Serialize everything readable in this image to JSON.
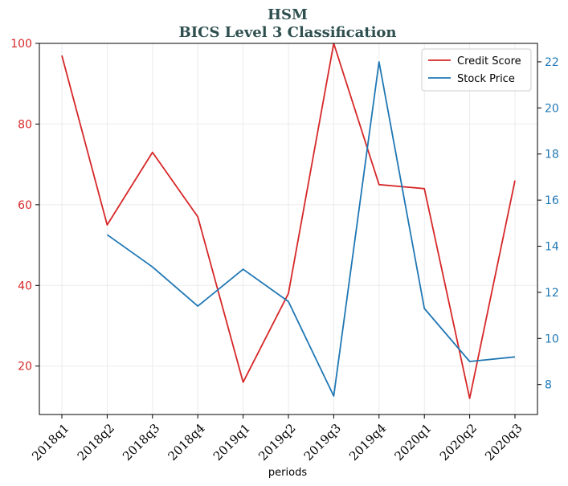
{
  "chart_data": {
    "type": "line",
    "title": "HSM",
    "subtitle": "BICS Level 3 Classification",
    "xlabel": "periods",
    "categories": [
      "2018q1",
      "2018q2",
      "2018q3",
      "2018q4",
      "2019q1",
      "2019q2",
      "2019q3",
      "2019q4",
      "2020q1",
      "2020q2",
      "2020q3"
    ],
    "series": [
      {
        "name": "Credit Score",
        "axis": "left",
        "color": "#d62728",
        "values": [
          97,
          55,
          73,
          57,
          16,
          38,
          100,
          65,
          64,
          12,
          66
        ]
      },
      {
        "name": "Stock Price",
        "axis": "right",
        "color": "#1f77b4",
        "values": [
          null,
          14.5,
          13.1,
          11.4,
          13.0,
          11.6,
          7.5,
          22.0,
          11.3,
          9.0,
          9.2
        ]
      }
    ],
    "y_left": {
      "ylim": [
        8,
        100
      ],
      "ticks": [
        20,
        40,
        60,
        80,
        100
      ],
      "color": "#d62728"
    },
    "y_right": {
      "ylim": [
        6.7,
        22.8
      ],
      "ticks": [
        8,
        10,
        12,
        14,
        16,
        18,
        20,
        22
      ],
      "color": "#1f77b4"
    },
    "grid": true,
    "legend": "top-right"
  }
}
